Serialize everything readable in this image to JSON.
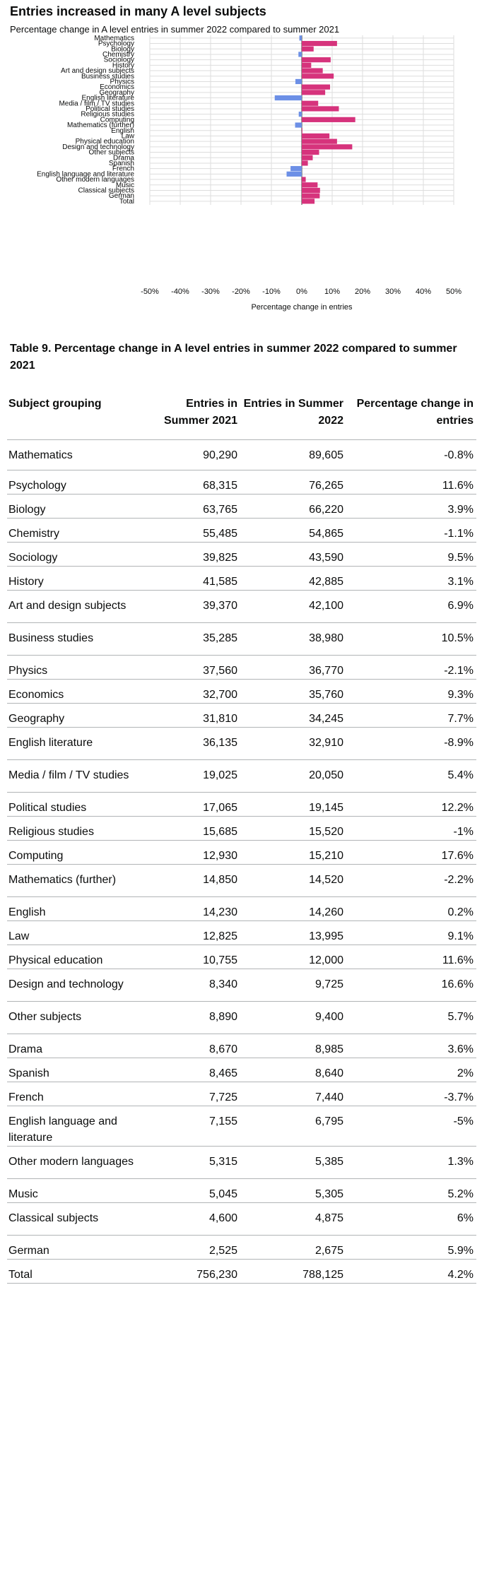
{
  "chart_data": {
    "type": "bar",
    "orientation": "horizontal",
    "title": "Entries increased in many A level subjects",
    "subtitle": "Percentage change in A level entries in summer 2022 compared to summer 2021",
    "xlabel": "Percentage change in entries",
    "ylabel": "",
    "xlim": [
      -50,
      50
    ],
    "xticks": [
      "-50%",
      "-40%",
      "-30%",
      "-20%",
      "-10%",
      "0%",
      "10%",
      "20%",
      "30%",
      "40%",
      "50%"
    ],
    "grid": true,
    "colors": {
      "positive": "#d6337c",
      "negative": "#6c8fe6",
      "zero_line": "#0b0c0c",
      "grid": "#dddddd"
    },
    "categories": [
      "Mathematics",
      "Psychology",
      "Biology",
      "Chemistry",
      "Sociology",
      "History",
      "Art and design subjects",
      "Business studies",
      "Physics",
      "Economics",
      "Geography",
      "English literature",
      "Media / film / TV studies",
      "Political studies",
      "Religious studies",
      "Computing",
      "Mathematics (further)",
      "English",
      "Law",
      "Physical education",
      "Design and technology",
      "Other subjects",
      "Drama",
      "Spanish",
      "French",
      "English language and literature",
      "Other modern languages",
      "Music",
      "Classical subjects",
      "German",
      "Total"
    ],
    "values": [
      -0.8,
      11.6,
      3.9,
      -1.1,
      9.5,
      3.1,
      6.9,
      10.5,
      -2.1,
      9.3,
      7.7,
      -8.9,
      5.4,
      12.2,
      -1,
      17.6,
      -2.2,
      0.2,
      9.1,
      11.6,
      16.6,
      5.7,
      3.6,
      2,
      -3.7,
      -5,
      1.3,
      5.2,
      6,
      5.9,
      4.2
    ]
  },
  "table": {
    "caption": "Table 9. Percentage change in A level entries in summer 2022 compared to summer 2021",
    "headers": [
      "Subject grouping",
      "Entries in Summer 2021",
      "Entries in Summer 2022",
      "Percentage change in entries"
    ],
    "rows": [
      [
        "Mathematics",
        "90,290",
        "89,605",
        "-0.8%"
      ],
      [
        "Psychology",
        "68,315",
        "76,265",
        "11.6%"
      ],
      [
        "Biology",
        "63,765",
        "66,220",
        "3.9%"
      ],
      [
        "Chemistry",
        "55,485",
        "54,865",
        "-1.1%"
      ],
      [
        "Sociology",
        "39,825",
        "43,590",
        "9.5%"
      ],
      [
        "History",
        "41,585",
        "42,885",
        "3.1%"
      ],
      [
        "Art and design subjects",
        "39,370",
        "42,100",
        "6.9%"
      ],
      [
        "Business studies",
        "35,285",
        "38,980",
        "10.5%"
      ],
      [
        "Physics",
        "37,560",
        "36,770",
        "-2.1%"
      ],
      [
        "Economics",
        "32,700",
        "35,760",
        "9.3%"
      ],
      [
        "Geography",
        "31,810",
        "34,245",
        "7.7%"
      ],
      [
        "English literature",
        "36,135",
        "32,910",
        "-8.9%"
      ],
      [
        "Media / film / TV studies",
        "19,025",
        "20,050",
        "5.4%"
      ],
      [
        "Political studies",
        "17,065",
        "19,145",
        "12.2%"
      ],
      [
        "Religious studies",
        "15,685",
        "15,520",
        "-1%"
      ],
      [
        "Computing",
        "12,930",
        "15,210",
        "17.6%"
      ],
      [
        "Mathematics (further)",
        "14,850",
        "14,520",
        "-2.2%"
      ],
      [
        "English",
        "14,230",
        "14,260",
        "0.2%"
      ],
      [
        "Law",
        "12,825",
        "13,995",
        "9.1%"
      ],
      [
        "Physical education",
        "10,755",
        "12,000",
        "11.6%"
      ],
      [
        "Design and technology",
        "8,340",
        "9,725",
        "16.6%"
      ],
      [
        "Other subjects",
        "8,890",
        "9,400",
        "5.7%"
      ],
      [
        "Drama",
        "8,670",
        "8,985",
        "3.6%"
      ],
      [
        "Spanish",
        "8,465",
        "8,640",
        "2%"
      ],
      [
        "French",
        "7,725",
        "7,440",
        "-3.7%"
      ],
      [
        "English language and literature",
        "7,155",
        "6,795",
        "-5%"
      ],
      [
        "Other modern languages",
        "5,315",
        "5,385",
        "1.3%"
      ],
      [
        "Music",
        "5,045",
        "5,305",
        "5.2%"
      ],
      [
        "Classical subjects",
        "4,600",
        "4,875",
        "6%"
      ],
      [
        "German",
        "2,525",
        "2,675",
        "5.9%"
      ],
      [
        "Total",
        "756,230",
        "788,125",
        "4.2%"
      ]
    ]
  }
}
